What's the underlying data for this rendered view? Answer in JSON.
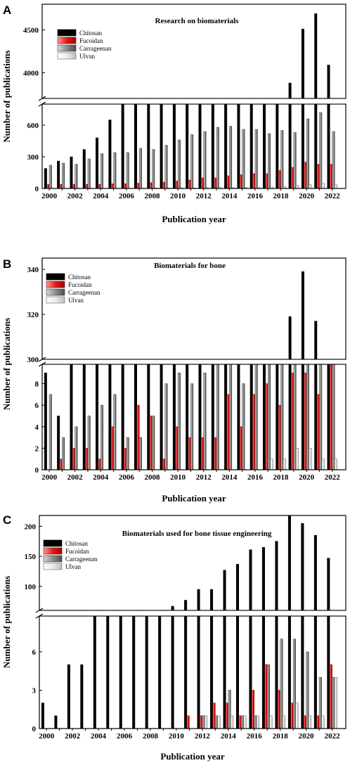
{
  "colors": {
    "Chitosan": "#000000",
    "Fucoidan": "#e01b1b",
    "Carrageenan": "#8c8c8c",
    "Ulvan": "#e8e8e8"
  },
  "chart_data": [
    {
      "type": "bar",
      "panel": "A",
      "title": "Research on biomaterials",
      "xlabel": "Publication year",
      "ylabel": "Number of publications",
      "broken_axis": true,
      "ylim_lower": [
        0,
        800
      ],
      "ylim_upper": [
        3700,
        4800
      ],
      "yticks_lower": [
        0,
        300,
        600
      ],
      "yticks_upper": [
        4000,
        4500
      ],
      "legend_position": "top-left",
      "categories": [
        2000,
        2001,
        2002,
        2003,
        2004,
        2005,
        2006,
        2007,
        2008,
        2009,
        2010,
        2011,
        2012,
        2013,
        2014,
        2015,
        2016,
        2017,
        2018,
        2019,
        2020,
        2021,
        2022
      ],
      "xtick_labels": [
        "2000",
        "2002",
        "2004",
        "2006",
        "2008",
        "2010",
        "2012",
        "2014",
        "2016",
        "2018",
        "2020",
        "2022"
      ],
      "series": [
        {
          "name": "Chitosan",
          "values": [
            190,
            260,
            300,
            370,
            480,
            650,
            800,
            830,
            850,
            900,
            950,
            1000,
            1100,
            1200,
            1300,
            1400,
            1500,
            1700,
            2000,
            3880,
            4510,
            4690,
            4090
          ]
        },
        {
          "name": "Fucoidan",
          "values": [
            40,
            40,
            40,
            40,
            40,
            45,
            45,
            50,
            55,
            60,
            70,
            80,
            100,
            100,
            120,
            130,
            140,
            140,
            170,
            200,
            250,
            230,
            230
          ]
        },
        {
          "name": "Carrageenan",
          "values": [
            220,
            240,
            230,
            280,
            330,
            340,
            340,
            380,
            370,
            410,
            460,
            510,
            540,
            580,
            590,
            560,
            560,
            520,
            550,
            530,
            660,
            720,
            540
          ]
        },
        {
          "name": "Ulvan",
          "values": [
            3,
            3,
            3,
            3,
            3,
            3,
            3,
            3,
            5,
            5,
            5,
            5,
            8,
            8,
            8,
            10,
            12,
            15,
            20,
            30,
            35,
            50,
            35
          ]
        }
      ]
    },
    {
      "type": "bar",
      "panel": "B",
      "title": "Biomaterials for bone",
      "xlabel": "Publication year",
      "ylabel": "Number of publications",
      "broken_axis": true,
      "ylim_lower": [
        0,
        9.8
      ],
      "ylim_upper": [
        300,
        345
      ],
      "yticks_lower": [
        0,
        2,
        4,
        6,
        8
      ],
      "yticks_upper": [
        300,
        320,
        340
      ],
      "legend_position": "top-left",
      "categories": [
        2000,
        2001,
        2002,
        2003,
        2004,
        2005,
        2006,
        2007,
        2008,
        2009,
        2010,
        2011,
        2012,
        2013,
        2014,
        2015,
        2016,
        2017,
        2018,
        2019,
        2020,
        2021,
        2022
      ],
      "xtick_labels": [
        "2000",
        "2002",
        "2004",
        "2006",
        "2008",
        "2010",
        "2012",
        "2014",
        "2016",
        "2018",
        "2020",
        "2022"
      ],
      "series": [
        {
          "name": "Chitosan",
          "values": [
            9,
            5,
            12,
            14,
            16,
            20,
            24,
            27,
            30,
            35,
            40,
            45,
            50,
            60,
            80,
            100,
            150,
            200,
            260,
            319,
            339,
            317,
            280
          ]
        },
        {
          "name": "Fucoidan",
          "values": [
            0,
            1,
            2,
            2,
            1,
            4,
            2,
            6,
            5,
            1,
            4,
            3,
            3,
            3,
            7,
            4,
            7,
            8,
            6,
            9,
            9,
            7,
            10
          ]
        },
        {
          "name": "Carrageenan",
          "values": [
            7,
            3,
            4,
            5,
            6,
            7,
            3,
            3,
            5,
            8,
            9,
            8,
            9,
            10,
            10,
            8,
            10,
            10,
            10,
            10,
            10,
            10,
            10
          ]
        },
        {
          "name": "Ulvan",
          "values": [
            0,
            0,
            0,
            0,
            0,
            0,
            0,
            0,
            0,
            0,
            0,
            0,
            0,
            0,
            0,
            0,
            0,
            1,
            1,
            2,
            2,
            1,
            1
          ]
        }
      ]
    },
    {
      "type": "bar",
      "panel": "C",
      "title": "Biomaterials used for bone tissue engineering",
      "xlabel": "Publication year",
      "ylabel": "Number of publications",
      "broken_axis": true,
      "ylim_lower": [
        0,
        8.8
      ],
      "ylim_upper": [
        60,
        218
      ],
      "yticks_lower": [
        0,
        3,
        6
      ],
      "yticks_upper": [
        100,
        150,
        200
      ],
      "legend_position": "top-left",
      "categories": [
        2000,
        2001,
        2002,
        2003,
        2004,
        2005,
        2006,
        2007,
        2008,
        2009,
        2010,
        2011,
        2012,
        2013,
        2014,
        2015,
        2016,
        2017,
        2018,
        2019,
        2020,
        2021,
        2022
      ],
      "xtick_labels": [
        "2000",
        "2002",
        "2004",
        "2006",
        "2008",
        "2010",
        "2012",
        "2014",
        "2016",
        "2018",
        "2020",
        "2022"
      ],
      "series": [
        {
          "name": "Chitosan",
          "values": [
            2,
            1,
            5,
            5,
            12,
            15,
            20,
            25,
            30,
            45,
            67,
            77,
            95,
            95,
            127,
            137,
            161,
            165,
            175,
            217,
            205,
            185,
            147
          ]
        },
        {
          "name": "Fucoidan",
          "values": [
            0,
            0,
            0,
            0,
            0,
            0,
            0,
            0,
            0,
            0,
            0,
            1,
            1,
            2,
            2,
            1,
            3,
            5,
            3,
            2,
            1,
            1,
            5
          ]
        },
        {
          "name": "Carrageenan",
          "values": [
            0,
            0,
            0,
            0,
            0,
            0,
            0,
            0,
            0,
            0,
            0,
            0,
            1,
            1,
            3,
            1,
            1,
            5,
            7,
            7,
            6,
            4,
            4
          ]
        },
        {
          "name": "Ulvan",
          "values": [
            0,
            0,
            0,
            0,
            0,
            0,
            0,
            0,
            0,
            0,
            0,
            0,
            1,
            1,
            1,
            1,
            1,
            1,
            1,
            2,
            1,
            1,
            4
          ]
        }
      ]
    }
  ]
}
